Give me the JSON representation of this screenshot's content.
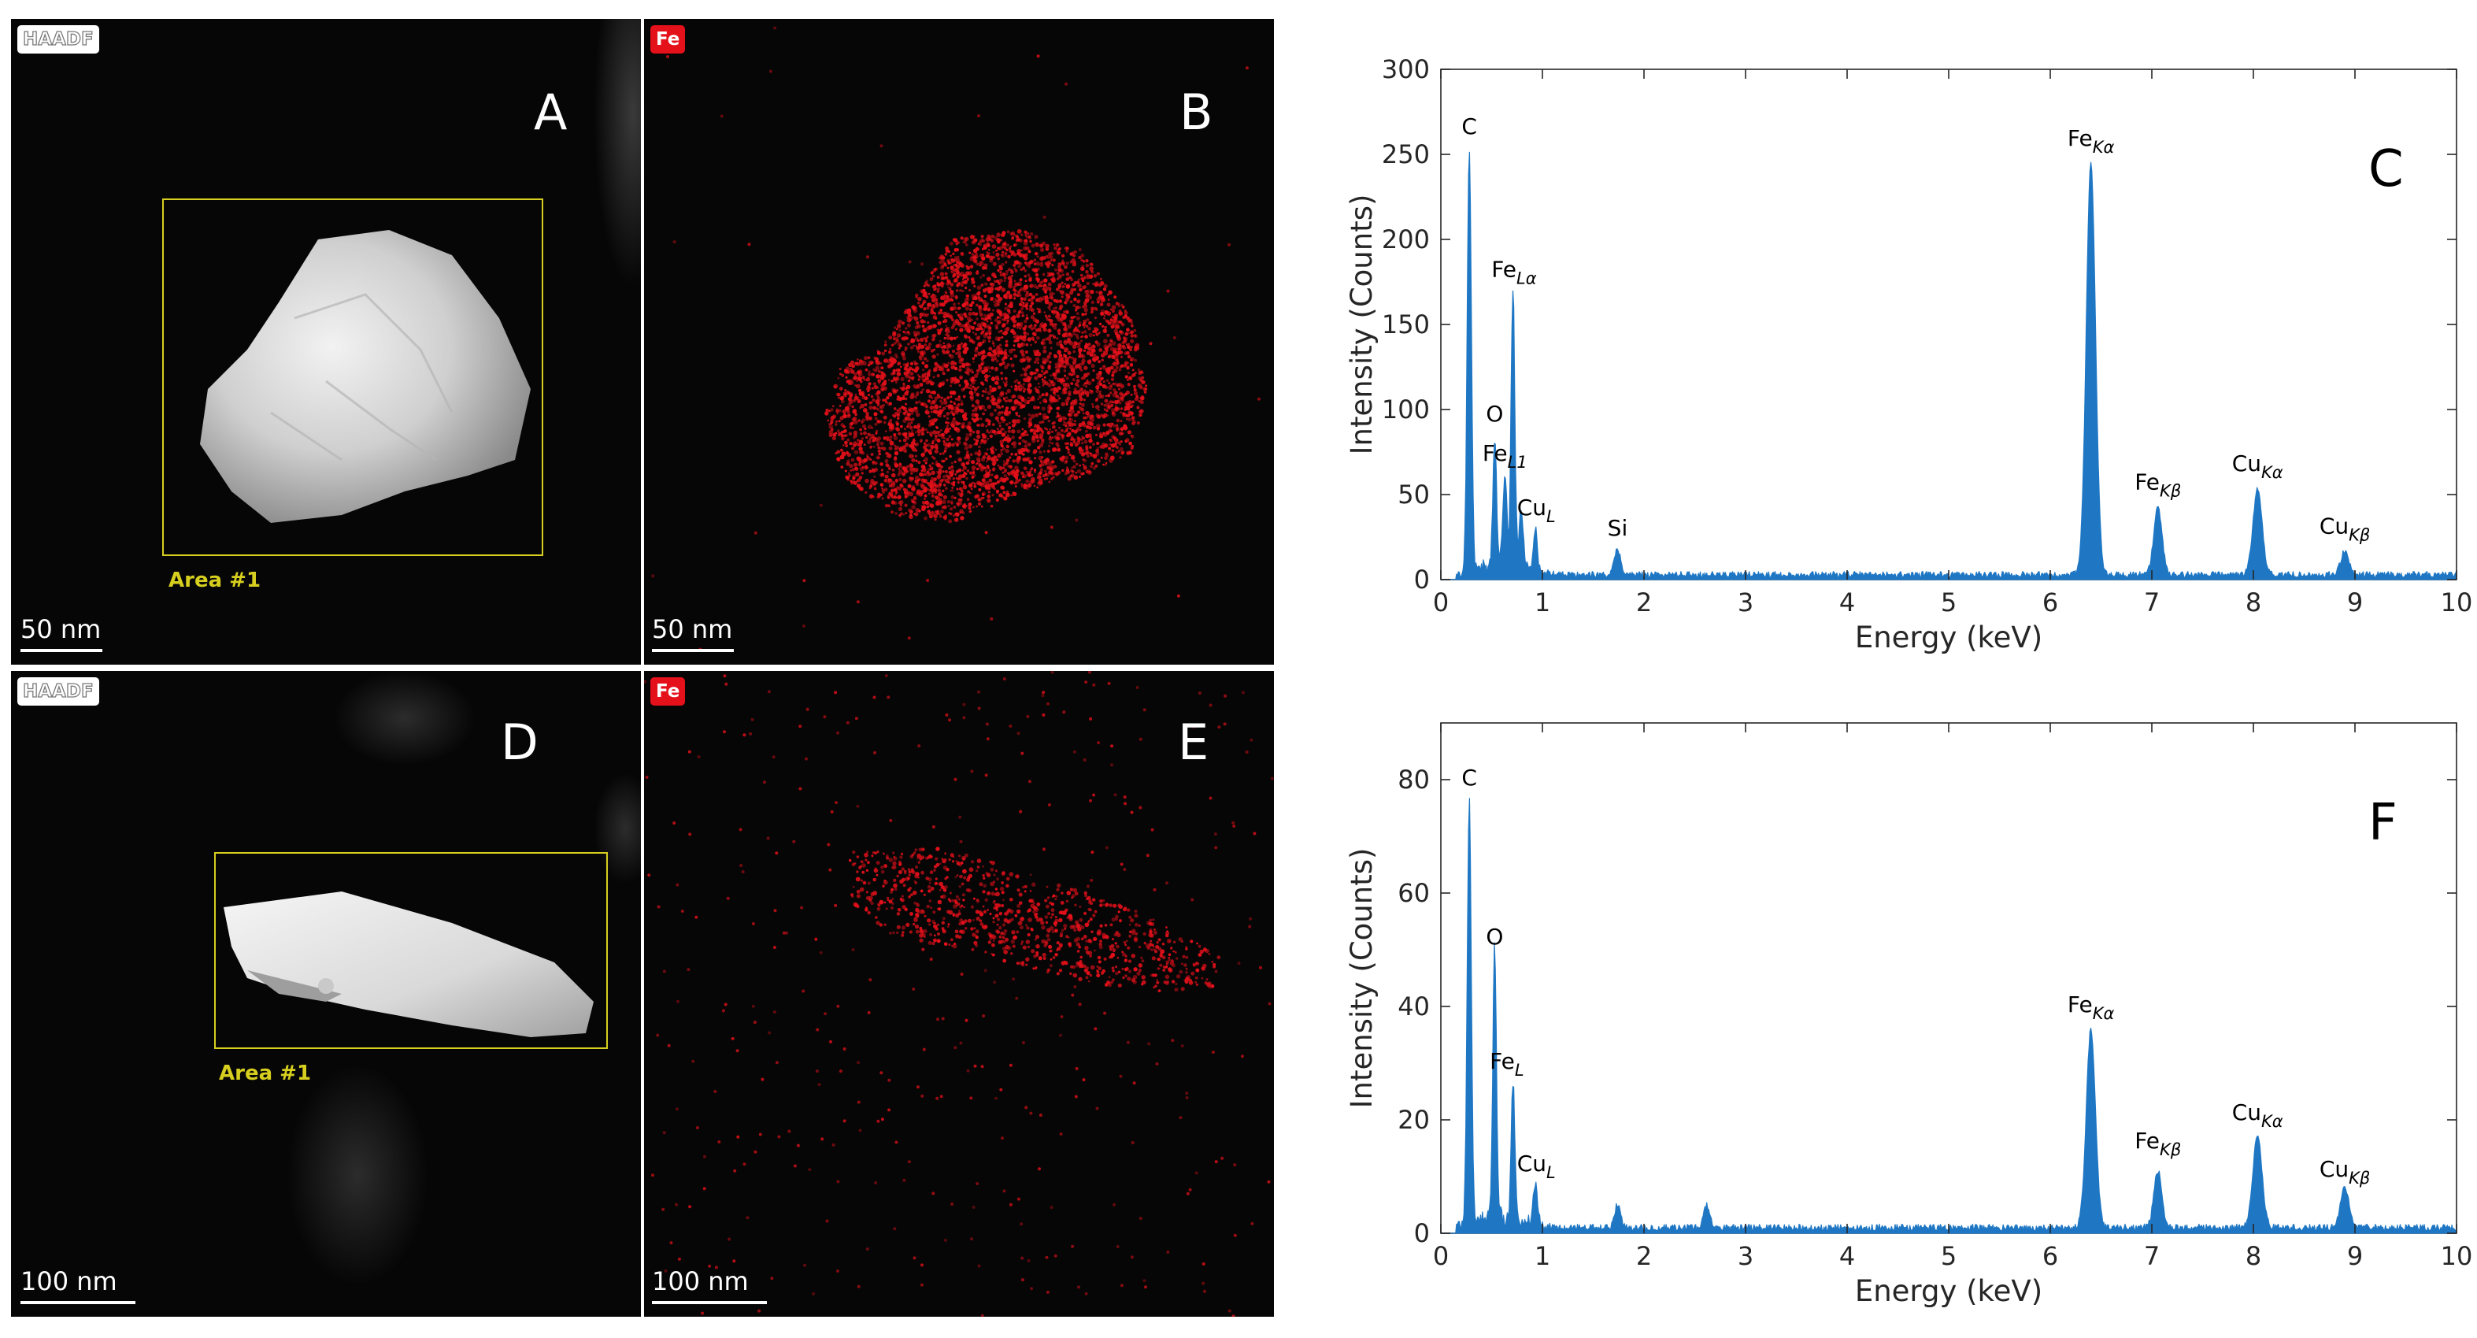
{
  "panels": {
    "A": {
      "label": "A",
      "tag": "HAADF",
      "scale": "50 nm",
      "area": "Area #1"
    },
    "B": {
      "label": "B",
      "tag": "Fe",
      "scale": "50 nm"
    },
    "D": {
      "label": "D",
      "tag": "HAADF",
      "scale": "100 nm",
      "area": "Area #1"
    },
    "E": {
      "label": "E",
      "tag": "Fe",
      "scale": "100 nm"
    }
  },
  "colors": {
    "spectrum": "#1f77c4",
    "fe_map": "#e4101a",
    "area_box": "#d7cf1f"
  },
  "chart_data": [
    {
      "type": "area",
      "panel_label": "C",
      "xlabel": "Energy (keV)",
      "ylabel": "Intensity (Counts)",
      "xlim": [
        0,
        10
      ],
      "ylim": [
        0,
        300
      ],
      "xticks": [
        0,
        1,
        2,
        3,
        4,
        5,
        6,
        7,
        8,
        9,
        10
      ],
      "yticks": [
        0,
        50,
        100,
        150,
        200,
        250,
        300
      ],
      "baseline": 3,
      "peaks": [
        {
          "x": 0.28,
          "y": 250,
          "w": 0.02
        },
        {
          "x": 0.53,
          "y": 75,
          "w": 0.018
        },
        {
          "x": 0.63,
          "y": 55,
          "w": 0.02
        },
        {
          "x": 0.71,
          "y": 165,
          "w": 0.018
        },
        {
          "x": 0.79,
          "y": 35,
          "w": 0.02
        },
        {
          "x": 0.93,
          "y": 25,
          "w": 0.02
        },
        {
          "x": 1.74,
          "y": 15,
          "w": 0.03
        },
        {
          "x": 6.4,
          "y": 243,
          "w": 0.045
        },
        {
          "x": 7.06,
          "y": 40,
          "w": 0.04
        },
        {
          "x": 8.04,
          "y": 50,
          "w": 0.045
        },
        {
          "x": 8.9,
          "y": 14,
          "w": 0.04
        }
      ],
      "annotations": [
        {
          "x": 0.28,
          "y": 262,
          "text": "C"
        },
        {
          "x": 0.72,
          "y": 178,
          "text": "Fe",
          "sub": "Lα"
        },
        {
          "x": 0.53,
          "y": 93,
          "text": "O"
        },
        {
          "x": 0.63,
          "y": 70,
          "text": "Fe",
          "sub": "L1"
        },
        {
          "x": 0.94,
          "y": 38,
          "text": "Cu",
          "sub": "L"
        },
        {
          "x": 1.74,
          "y": 26,
          "text": "Si"
        },
        {
          "x": 6.4,
          "y": 255,
          "text": "Fe",
          "sub": "Kα"
        },
        {
          "x": 7.06,
          "y": 53,
          "text": "Fe",
          "sub": "Kβ"
        },
        {
          "x": 8.04,
          "y": 64,
          "text": "Cu",
          "sub": "Kα"
        },
        {
          "x": 8.9,
          "y": 27,
          "text": "Cu",
          "sub": "Kβ"
        }
      ]
    },
    {
      "type": "area",
      "panel_label": "F",
      "xlabel": "Energy (keV)",
      "ylabel": "Intensity (Counts)",
      "xlim": [
        0,
        10
      ],
      "ylim": [
        0,
        90
      ],
      "xticks": [
        0,
        1,
        2,
        3,
        4,
        5,
        6,
        7,
        8,
        9,
        10
      ],
      "yticks": [
        0,
        20,
        40,
        60,
        80
      ],
      "baseline": 1,
      "peaks": [
        {
          "x": 0.28,
          "y": 75,
          "w": 0.02
        },
        {
          "x": 0.53,
          "y": 48,
          "w": 0.018
        },
        {
          "x": 0.71,
          "y": 25,
          "w": 0.018
        },
        {
          "x": 0.93,
          "y": 7,
          "w": 0.02
        },
        {
          "x": 1.74,
          "y": 4,
          "w": 0.03
        },
        {
          "x": 2.62,
          "y": 4,
          "w": 0.03
        },
        {
          "x": 6.4,
          "y": 35,
          "w": 0.045
        },
        {
          "x": 7.06,
          "y": 10,
          "w": 0.04
        },
        {
          "x": 8.04,
          "y": 16,
          "w": 0.045
        },
        {
          "x": 8.9,
          "y": 7,
          "w": 0.04
        }
      ],
      "annotations": [
        {
          "x": 0.28,
          "y": 79,
          "text": "C"
        },
        {
          "x": 0.53,
          "y": 51,
          "text": "O"
        },
        {
          "x": 0.65,
          "y": 29,
          "text": "Fe",
          "sub": "L"
        },
        {
          "x": 0.94,
          "y": 11,
          "text": "Cu",
          "sub": "L"
        },
        {
          "x": 6.4,
          "y": 39,
          "text": "Fe",
          "sub": "Kα"
        },
        {
          "x": 7.06,
          "y": 15,
          "text": "Fe",
          "sub": "Kβ"
        },
        {
          "x": 8.04,
          "y": 20,
          "text": "Cu",
          "sub": "Kα"
        },
        {
          "x": 8.9,
          "y": 10,
          "text": "Cu",
          "sub": "Kβ"
        }
      ]
    }
  ]
}
